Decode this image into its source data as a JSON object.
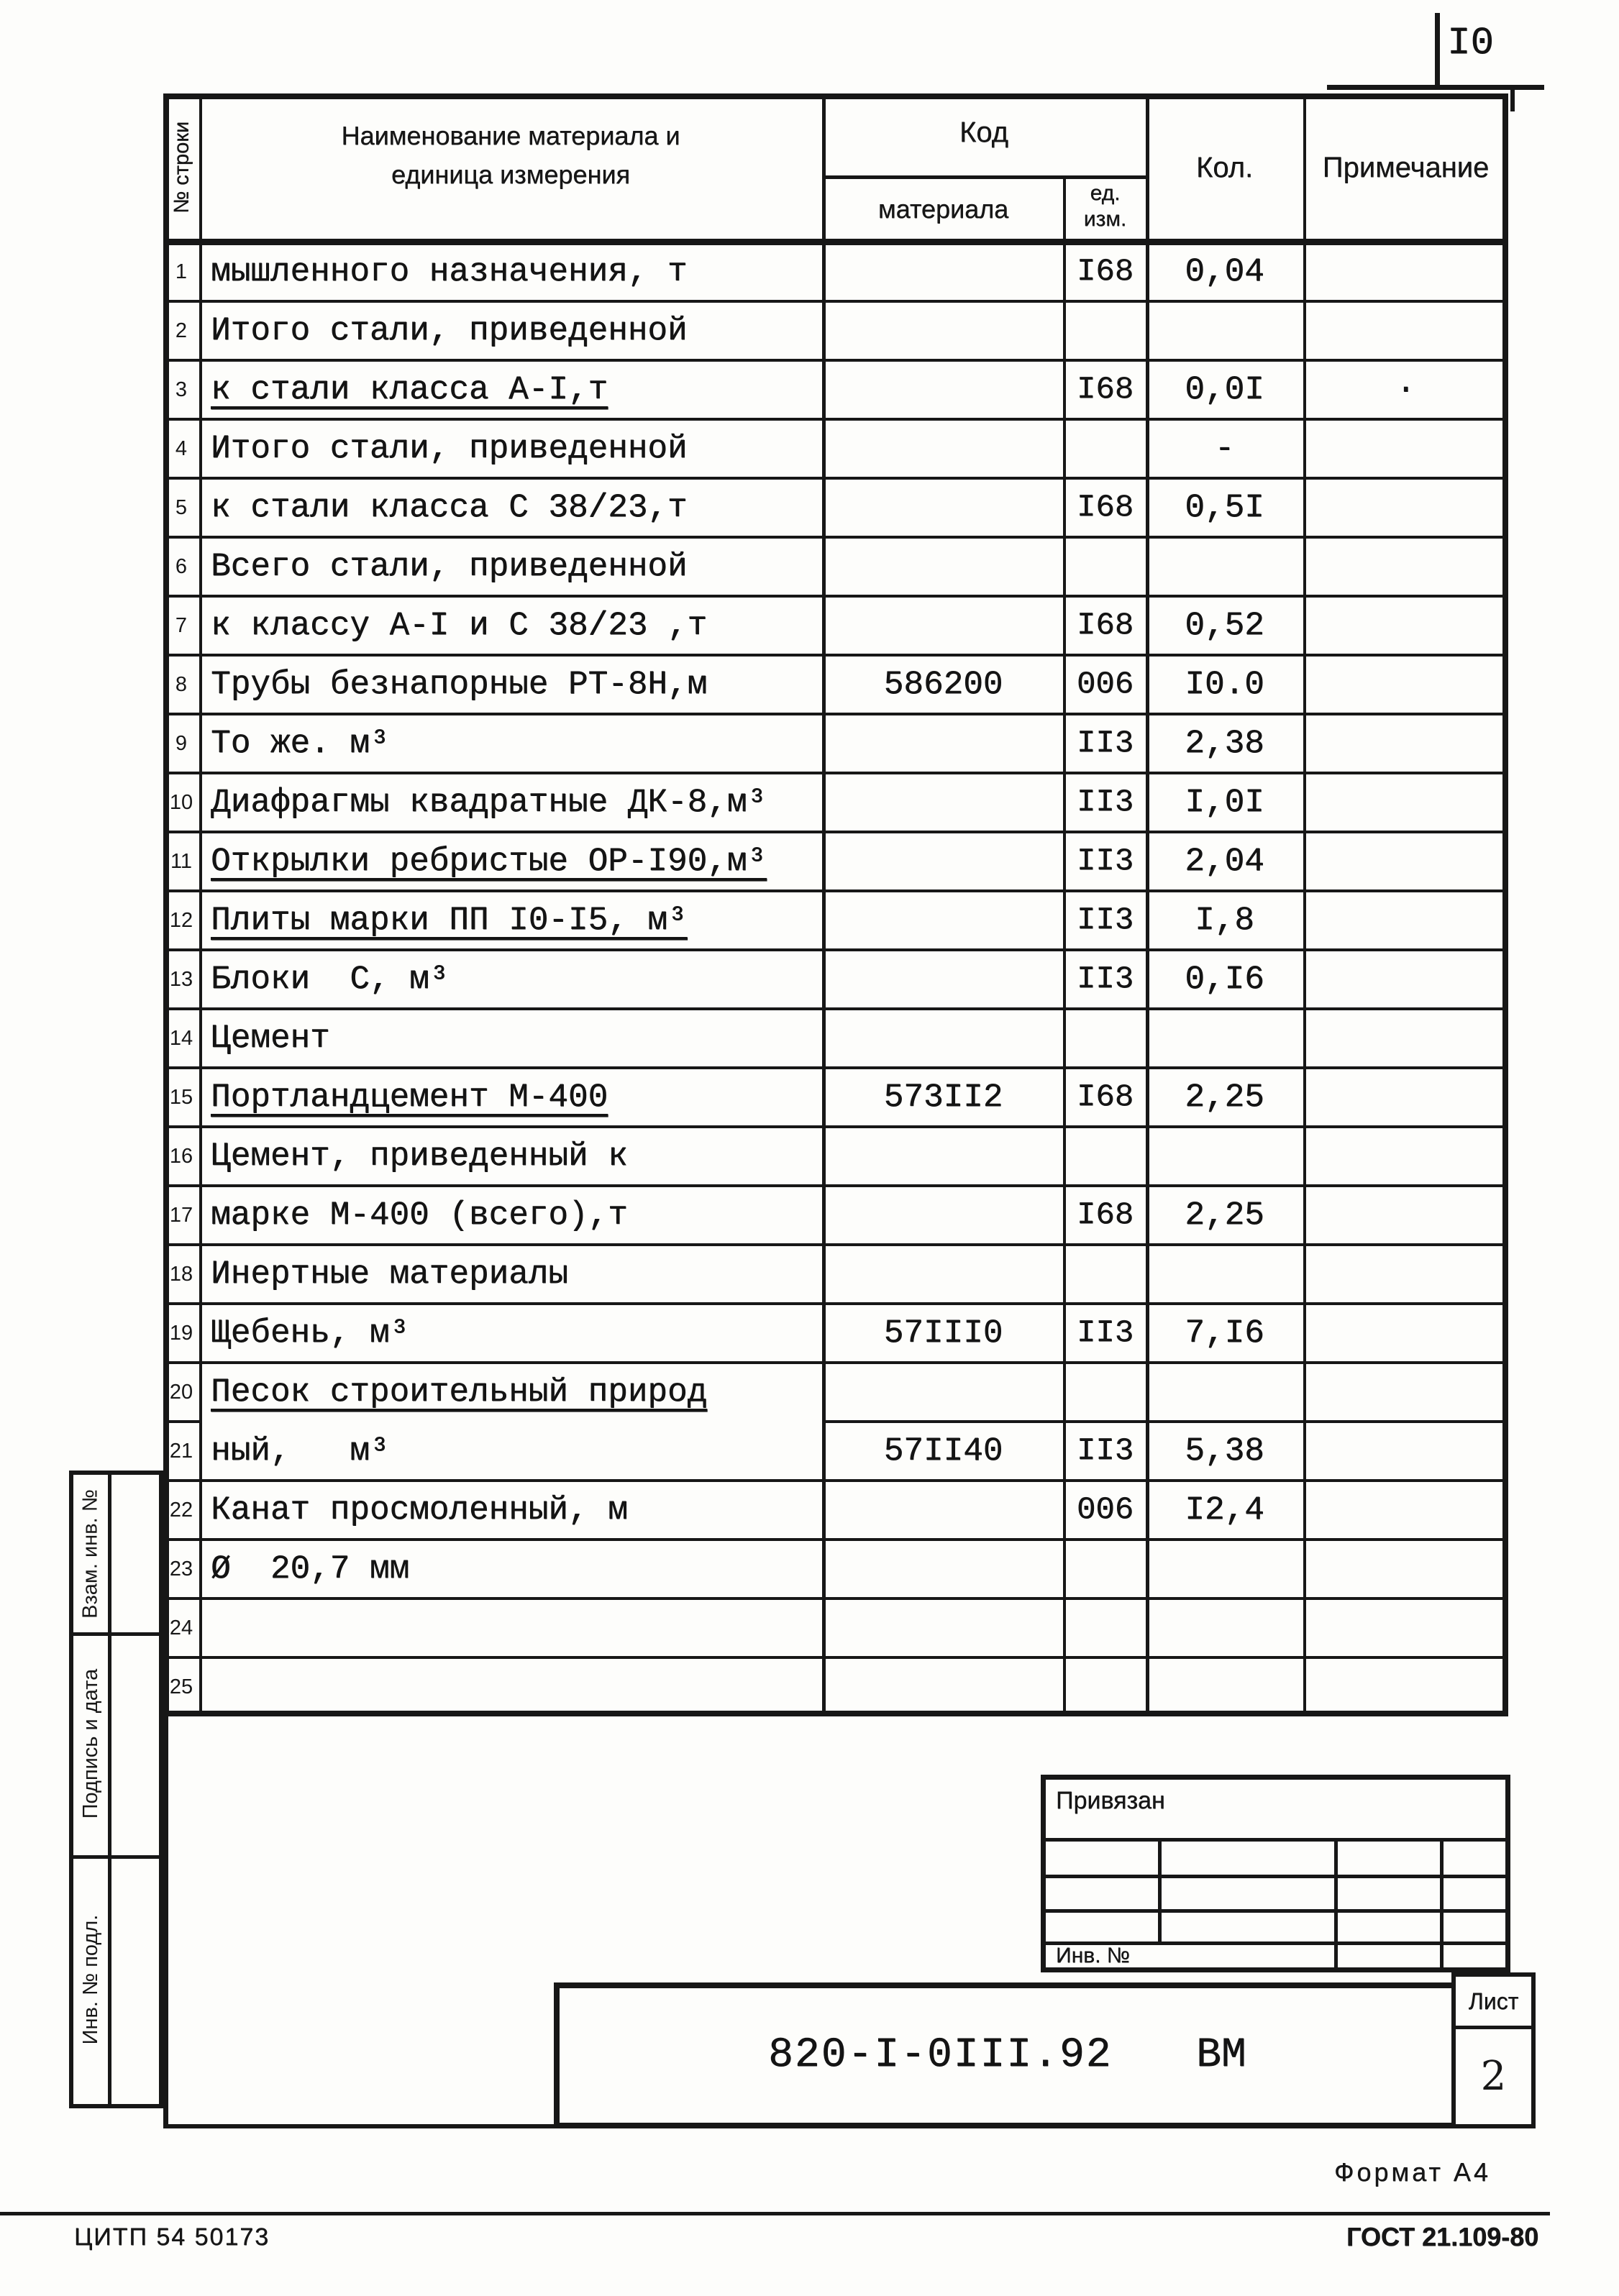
{
  "page": {
    "number": "I0",
    "format_label": "Формат А4",
    "footer_left": "ЦИТП 54 50173",
    "footer_right": "ГОСТ 21.109-80"
  },
  "table": {
    "headers": {
      "row_no": "№ строки",
      "name_line1": "Наименование материала  и",
      "name_line2": "единица измерения",
      "code_group": "Код",
      "code_sub": "материала",
      "unit_line1": "ед.",
      "unit_line2": "изм.",
      "qty": "Кол.",
      "note": "Примечание"
    },
    "rows": [
      {
        "no": "1",
        "name": "мышленного назначения, т",
        "code": "",
        "unit": "I68",
        "qty": "0,04",
        "note": "",
        "u": false
      },
      {
        "no": "2",
        "name": "Итого стали, приведенной",
        "code": "",
        "unit": "",
        "qty": "",
        "note": "",
        "u": false
      },
      {
        "no": "3",
        "name": "к стали класса А-I,т",
        "code": "",
        "unit": "I68",
        "qty": "0,0I",
        "note": "·",
        "u": true
      },
      {
        "no": "4",
        "name": "Итого стали, приведенной",
        "code": "",
        "unit": "",
        "qty": "-",
        "note": "",
        "u": false
      },
      {
        "no": "5",
        "name": "к стали класса С 38/23,т",
        "code": "",
        "unit": "I68",
        "qty": "0,5I",
        "note": "",
        "u": false
      },
      {
        "no": "6",
        "name": "Всего стали, приведенной",
        "code": "",
        "unit": "",
        "qty": "",
        "note": "",
        "u": false
      },
      {
        "no": "7",
        "name": "к классу А-I и С 38/23 ,т",
        "code": "",
        "unit": "I68",
        "qty": "0,52",
        "note": "",
        "u": false
      },
      {
        "no": "8",
        "name": "Трубы безнапорные РТ-8Н,м",
        "code": "586200",
        "unit": "006",
        "qty": "I0.0",
        "note": "",
        "u": false
      },
      {
        "no": "9",
        "name": "То же. м³",
        "code": "",
        "unit": "II3",
        "qty": "2,38",
        "note": "",
        "u": false
      },
      {
        "no": "10",
        "name": "Диафрагмы квадратные ДК-8,м³",
        "code": "",
        "unit": "II3",
        "qty": "I,0I",
        "note": "",
        "u": false
      },
      {
        "no": "11",
        "name": "Открылки ребристые ОР-I90,м³",
        "code": "",
        "unit": "II3",
        "qty": "2,04",
        "note": "",
        "u": true
      },
      {
        "no": "12",
        "name": "Плиты марки ПП I0-I5, м³",
        "code": "",
        "unit": "II3",
        "qty": "I,8",
        "note": "",
        "u": true
      },
      {
        "no": "13",
        "name": "Блоки  С, м³",
        "code": "",
        "unit": "II3",
        "qty": "0,I6",
        "note": "",
        "u": false
      },
      {
        "no": "14",
        "name": "Цемент",
        "code": "",
        "unit": "",
        "qty": "",
        "note": "",
        "u": false
      },
      {
        "no": "15",
        "name": "Портландцемент М-400",
        "code": "573II2",
        "unit": "I68",
        "qty": "2,25",
        "note": "",
        "u": true
      },
      {
        "no": "16",
        "name": "Цемент, приведенный к",
        "code": "",
        "unit": "",
        "qty": "",
        "note": "",
        "u": false
      },
      {
        "no": "17",
        "name": "марке М-400 (всего),т",
        "code": "",
        "unit": "I68",
        "qty": "2,25",
        "note": "",
        "u": false
      },
      {
        "no": "18",
        "name": "Инертные материалы",
        "code": "",
        "unit": "",
        "qty": "",
        "note": "",
        "u": false
      },
      {
        "no": "19",
        "name": "Щебень, м³",
        "code": "57III0",
        "unit": "II3",
        "qty": "7,I6",
        "note": "",
        "u": false
      },
      {
        "no": "20",
        "name": "Песок строительный природ",
        "code": "",
        "unit": "",
        "qty": "",
        "note": "",
        "u": true
      },
      {
        "no": "21",
        "name": "ный,   м³",
        "code": "57II40",
        "unit": "II3",
        "qty": "5,38",
        "note": "",
        "u": false
      },
      {
        "no": "22",
        "name": "Канат просмоленный, м",
        "code": "",
        "unit": "006",
        "qty": "I2,4",
        "note": "",
        "u": false
      },
      {
        "no": "23",
        "name": "Ø  20,7 мм",
        "code": "",
        "unit": "",
        "qty": "",
        "note": "",
        "u": false
      },
      {
        "no": "24",
        "name": "",
        "code": "",
        "unit": "",
        "qty": "",
        "note": "",
        "u": false
      },
      {
        "no": "25",
        "name": "",
        "code": "",
        "unit": "",
        "qty": "",
        "note": "",
        "u": false
      }
    ]
  },
  "sidebar": {
    "items": [
      {
        "label": "Взам. инв. №"
      },
      {
        "label": "Подпись и дата"
      },
      {
        "label": "Инв. № подл."
      }
    ]
  },
  "title_block": {
    "binding_label": "Привязан",
    "inv_label": "Инв. №",
    "doc_number": "820-I-0III.92",
    "doc_type": "ВМ",
    "sheet_label": "Лист",
    "sheet_number": "2"
  }
}
